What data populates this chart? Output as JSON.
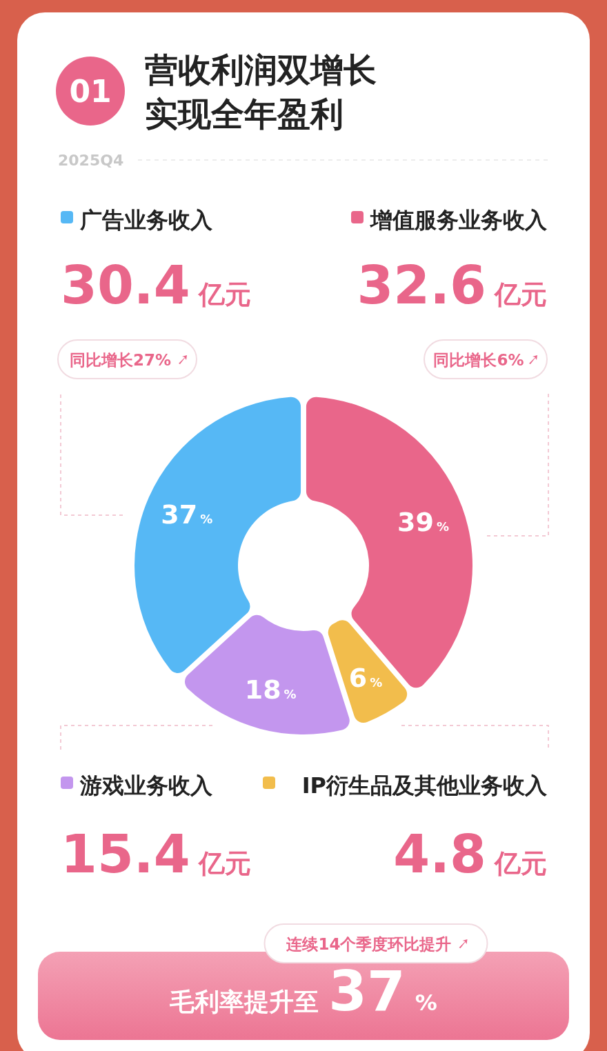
{
  "chart_data": {
    "type": "donut",
    "title": "营收利润双增长实现全年盈利",
    "categories": [
      "增值服务业务收入",
      "IP衍生品及其他业务收入",
      "游戏业务收入",
      "广告业务收入"
    ],
    "values": [
      39,
      6,
      18,
      37
    ],
    "value_labels": [
      "39%",
      "6%",
      "18%",
      "37%"
    ],
    "colors": [
      "#e9668a",
      "#f2bd4c",
      "#c396ee",
      "#56b8f5"
    ],
    "legend": "top",
    "annotations": [
      "01",
      "2025Q4",
      "32.6亿元",
      "4.8亿元",
      "15.4亿元",
      "30.4亿元",
      "同比增长6%",
      "同比增长27%",
      "连续14个季度环比提升",
      "毛利率提升至37%"
    ]
  }
}
